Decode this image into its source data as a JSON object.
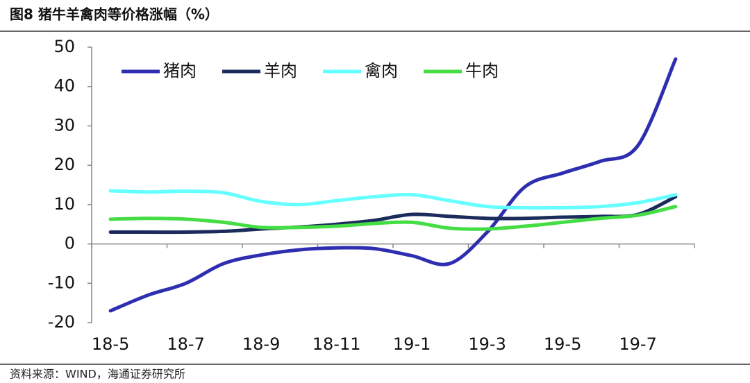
{
  "header": {
    "title": "图8  猪牛羊禽肉等价格涨幅（%）"
  },
  "chart_data": {
    "type": "line",
    "categories": [
      "18-5",
      null,
      "18-7",
      null,
      "18-9",
      null,
      "18-11",
      null,
      "19-1",
      null,
      "19-3",
      null,
      "19-5",
      null,
      "19-7",
      null
    ],
    "series": [
      {
        "name": "猪肉",
        "color": "#2e2eb0",
        "values": [
          -17,
          -13,
          -10,
          -5,
          -2.8,
          -1.5,
          -1,
          -1.2,
          -3,
          -5,
          3,
          14.5,
          18,
          21,
          25,
          47
        ]
      },
      {
        "name": "羊肉",
        "color": "#1b2b5c",
        "values": [
          3,
          3,
          3,
          3.2,
          3.8,
          4.3,
          5,
          6,
          7.5,
          7,
          6.5,
          6.5,
          6.8,
          7,
          7.5,
          12
        ]
      },
      {
        "name": "禽肉",
        "color": "#66ffff",
        "values": [
          13.5,
          13.2,
          13.4,
          13,
          10.8,
          10,
          11,
          12,
          12.5,
          11,
          9.5,
          9.2,
          9.2,
          9.5,
          10.5,
          12.5
        ]
      },
      {
        "name": "牛肉",
        "color": "#44dd44",
        "values": [
          6.3,
          6.5,
          6.3,
          5.5,
          4.2,
          4.2,
          4.5,
          5.2,
          5.5,
          4,
          3.8,
          4.5,
          5.5,
          6.5,
          7.3,
          9.5
        ]
      }
    ],
    "ylim": [
      -20,
      50
    ],
    "yticks": [
      -20,
      -10,
      0,
      10,
      20,
      30,
      40,
      50
    ],
    "legend": "top-left"
  },
  "footer": {
    "source": "资料来源：WIND，海通证券研究所"
  }
}
